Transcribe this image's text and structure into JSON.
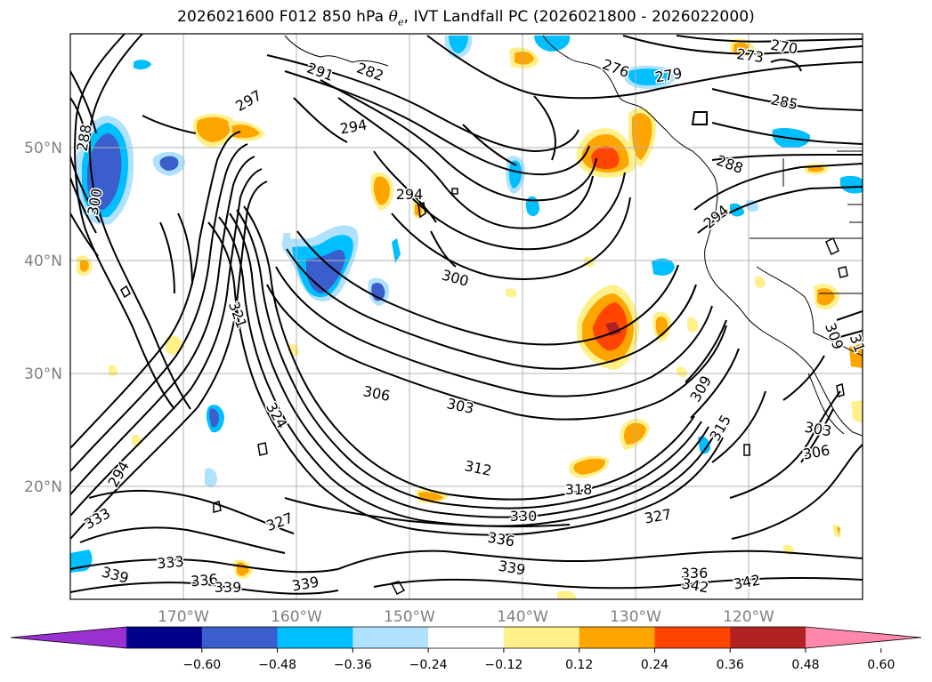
{
  "title_prefix": "2026021600 F012 850 hPa ",
  "title_symbol_base": "θ",
  "title_symbol_sub": "e",
  "title_suffix": ", IVT Landfall PC (2026021800 - 2026022000)",
  "lat_labels": [
    "50°N",
    "40°N",
    "30°N",
    "20°N"
  ],
  "lon_labels": [
    "170°W",
    "160°W",
    "150°W",
    "140°W",
    "130°W",
    "120°W"
  ],
  "colorbar": {
    "colors": [
      "#9b30d0",
      "#00008b",
      "#3a5fcd",
      "#00bfff",
      "#b0e2ff",
      "#ffffff",
      "#fff08a",
      "#ffa500",
      "#ff4500",
      "#b22222",
      "#ff88aa"
    ],
    "ticks": [
      "−0.60",
      "−0.48",
      "−0.36",
      "−0.24",
      "−0.12",
      "0.12",
      "0.24",
      "0.36",
      "0.48",
      "0.60"
    ]
  },
  "contour_labels": [
    {
      "text": "270"
    },
    {
      "text": "273"
    },
    {
      "text": "276"
    },
    {
      "text": "279"
    },
    {
      "text": "282"
    },
    {
      "text": "285"
    },
    {
      "text": "288"
    },
    {
      "text": "288"
    },
    {
      "text": "291"
    },
    {
      "text": "294"
    },
    {
      "text": "294"
    },
    {
      "text": "294"
    },
    {
      "text": "297"
    },
    {
      "text": "300"
    },
    {
      "text": "300"
    },
    {
      "text": "303"
    },
    {
      "text": "303"
    },
    {
      "text": "306"
    },
    {
      "text": "306"
    },
    {
      "text": "309"
    },
    {
      "text": "309"
    },
    {
      "text": "312"
    },
    {
      "text": "315"
    },
    {
      "text": "318"
    },
    {
      "text": "321"
    },
    {
      "text": "324"
    },
    {
      "text": "327"
    },
    {
      "text": "327"
    },
    {
      "text": "330"
    },
    {
      "text": "333"
    },
    {
      "text": "333"
    },
    {
      "text": "336"
    },
    {
      "text": "336"
    },
    {
      "text": "336"
    },
    {
      "text": "339"
    },
    {
      "text": "339"
    },
    {
      "text": "339"
    },
    {
      "text": "339"
    },
    {
      "text": "342"
    },
    {
      "text": "342"
    },
    {
      "text": "294"
    },
    {
      "text": "31"
    }
  ]
}
